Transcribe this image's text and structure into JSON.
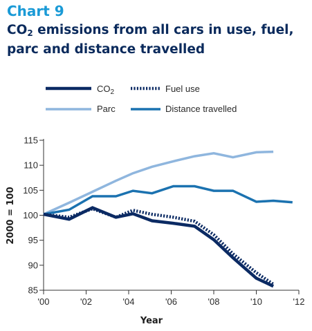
{
  "header": {
    "chart_number": "Chart 9",
    "title_main": "CO",
    "title_sub": "2",
    "title_rest": " emissions from all cars in use, fuel, parc and distance travelled"
  },
  "colors": {
    "co2": "#0b2a63",
    "fuel": "#0b2a63",
    "parc": "#8fb6de",
    "distance": "#1b72b0",
    "axis": "#333333",
    "title_accent": "#1a9ad6",
    "title_main": "#0a2a5c"
  },
  "chart_data": {
    "type": "line",
    "xlabel": "Year",
    "ylabel": "2000 = 100",
    "xlim": [
      2000,
      2012
    ],
    "ylim": [
      85,
      115
    ],
    "x_ticks": [
      2000,
      2002,
      2004,
      2006,
      2008,
      2010,
      2012
    ],
    "x_tick_labels": [
      "'00",
      "'02",
      "'04",
      "'06",
      "'08",
      "'10",
      "'12"
    ],
    "y_ticks": [
      85,
      90,
      95,
      100,
      105,
      110,
      115
    ],
    "y_tick_labels": [
      "85",
      "90",
      "95",
      "100",
      "105",
      "110",
      "115"
    ],
    "grid": false,
    "legend_position": "top",
    "series": [
      {
        "name": "CO2",
        "legend_main": "CO",
        "legend_sub": "2",
        "style": "solid-thick",
        "x": [
          2000,
          2001.2,
          2002.3,
          2003.4,
          2004.2,
          2005.1,
          2006.1,
          2007.1,
          2008,
          2008.9,
          2010,
          2010.8
        ],
        "y": [
          100.2,
          99.2,
          101.5,
          99.6,
          100.3,
          98.9,
          98.4,
          97.8,
          95.1,
          91.5,
          87.4,
          85.8
        ]
      },
      {
        "name": "Fuel use",
        "style": "dotted",
        "x": [
          2000,
          2001.2,
          2002.3,
          2003.4,
          2004.2,
          2005.1,
          2006.1,
          2007.1,
          2008,
          2008.9,
          2010,
          2010.8
        ],
        "y": [
          100.2,
          99.6,
          101.3,
          99.6,
          101.0,
          100.2,
          99.6,
          98.8,
          96.1,
          92.3,
          88.5,
          86.2
        ]
      },
      {
        "name": "Parc",
        "style": "solid",
        "x": [
          2000,
          2001.2,
          2002.3,
          2003.4,
          2004.2,
          2005.1,
          2006.1,
          2007.1,
          2008,
          2008.9,
          2010,
          2010.8
        ],
        "y": [
          100.2,
          102.5,
          104.7,
          106.9,
          108.4,
          109.7,
          110.8,
          111.8,
          112.4,
          111.6,
          112.6,
          112.7
        ]
      },
      {
        "name": "Distance travelled",
        "style": "solid",
        "x": [
          2000,
          2001.2,
          2002.3,
          2003.4,
          2004.2,
          2005.1,
          2006.1,
          2007.1,
          2008,
          2008.9,
          2010,
          2010.8,
          2011.7
        ],
        "y": [
          100.2,
          101.1,
          103.8,
          103.8,
          104.9,
          104.4,
          105.8,
          105.8,
          104.9,
          104.9,
          102.7,
          102.9,
          102.6
        ]
      }
    ]
  }
}
